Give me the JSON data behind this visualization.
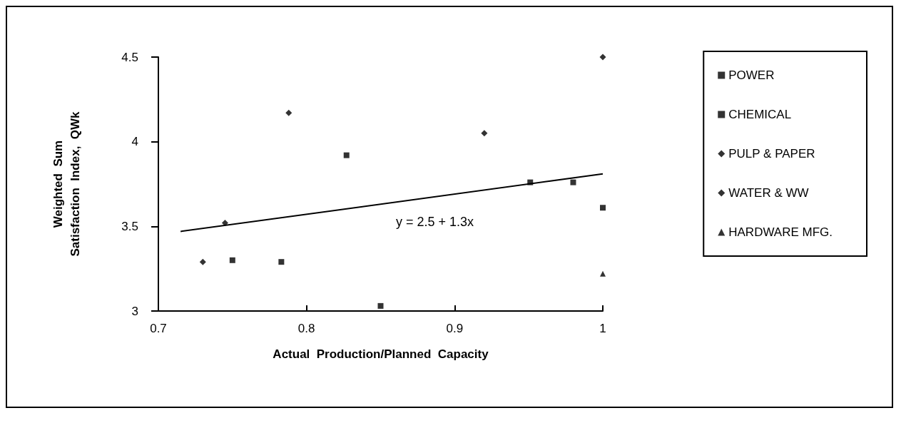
{
  "chart_data": {
    "type": "scatter",
    "xlabel": "Actual  Production/Planned  Capacity",
    "ylabel": "Weighted  Sum\nSatisfaction  Index,  QWk",
    "xlim": [
      0.7,
      1.0
    ],
    "xticks": [
      0.7,
      0.8,
      0.9,
      1
    ],
    "ylim": [
      3,
      4.5
    ],
    "yticks": [
      3,
      3.5,
      4,
      4.5
    ],
    "legend": "right",
    "series": [
      {
        "name": "POWER",
        "color": "#000000",
        "marker": "square",
        "x": [
          0.783,
          0.85,
          0.951
        ],
        "values": [
          3.29,
          3.03,
          3.76
        ]
      },
      {
        "name": "CHEMICAL",
        "color": "#000000",
        "marker": "square",
        "x": [
          0.75,
          0.827,
          0.98,
          1.0
        ],
        "values": [
          3.3,
          3.92,
          3.76,
          3.61
        ]
      },
      {
        "name": "PULP & PAPER",
        "color": "#000000",
        "marker": "diamond",
        "x": [
          0.73,
          0.745,
          0.92,
          1.0
        ],
        "values": [
          3.29,
          3.52,
          4.05,
          4.5
        ]
      },
      {
        "name": "WATER & WW",
        "color": "#000000",
        "marker": "diamond",
        "x": [
          0.788
        ],
        "values": [
          4.17
        ]
      },
      {
        "name": "HARDWARE MFG.",
        "color": "#000000",
        "marker": "triangle",
        "x": [
          1.0
        ],
        "values": [
          3.22
        ]
      },
      {
        "type": "line",
        "color": "#000000",
        "marker": "none",
        "x": [
          0.715,
          1.0
        ],
        "values": [
          3.47,
          3.81
        ]
      }
    ],
    "annotations": [
      "y = 2.5 + 1.3x"
    ]
  }
}
